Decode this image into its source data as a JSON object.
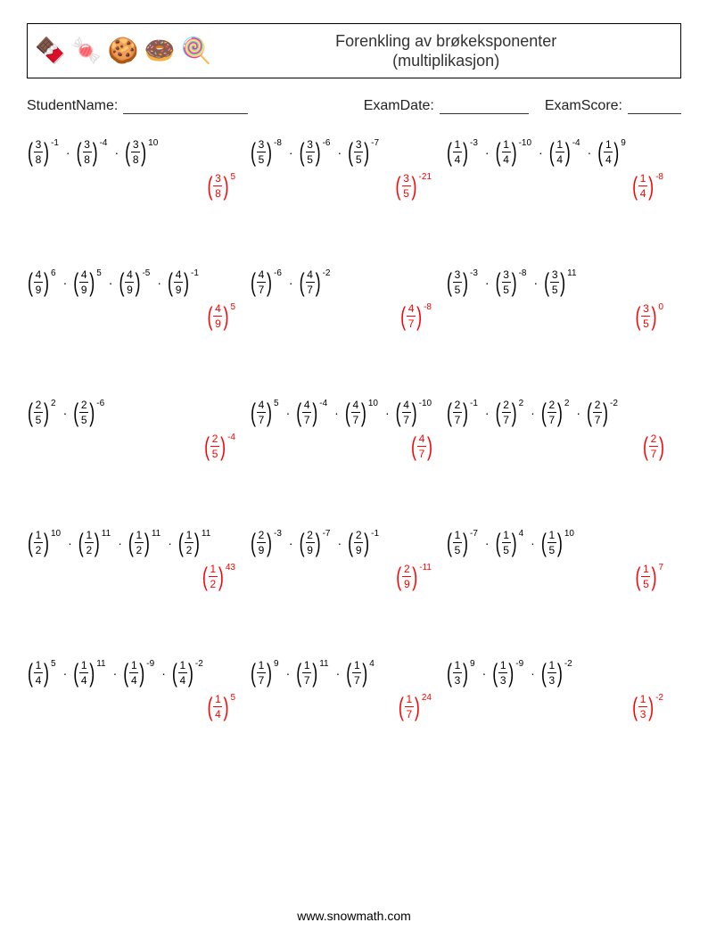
{
  "header": {
    "icons": [
      "🍫",
      "🍬",
      "🍪",
      "🍩",
      "🍭"
    ],
    "title_line1": "Forenkling av brøkeksponenter",
    "title_line2": "(multiplikasjon)"
  },
  "meta": {
    "student_label": "StudentName:",
    "date_label": "ExamDate:",
    "score_label": "ExamScore:"
  },
  "footer": "www.snowmath.com",
  "colors": {
    "text": "#000000",
    "answer": "#ff0000",
    "border": "#000000",
    "background": "#ffffff"
  },
  "problems": [
    [
      {
        "terms": [
          {
            "n": "3",
            "d": "8",
            "e": "-1"
          },
          {
            "n": "3",
            "d": "8",
            "e": "-4"
          },
          {
            "n": "3",
            "d": "8",
            "e": "10"
          }
        ],
        "ans": {
          "n": "3",
          "d": "8",
          "e": "5"
        }
      },
      {
        "terms": [
          {
            "n": "3",
            "d": "5",
            "e": "-8"
          },
          {
            "n": "3",
            "d": "5",
            "e": "-6"
          },
          {
            "n": "3",
            "d": "5",
            "e": "-7"
          }
        ],
        "ans": {
          "n": "3",
          "d": "5",
          "e": "-21"
        }
      },
      {
        "terms": [
          {
            "n": "1",
            "d": "4",
            "e": "-3"
          },
          {
            "n": "1",
            "d": "4",
            "e": "-10"
          },
          {
            "n": "1",
            "d": "4",
            "e": "-4"
          },
          {
            "n": "1",
            "d": "4",
            "e": "9"
          }
        ],
        "ans": {
          "n": "1",
          "d": "4",
          "e": "-8"
        }
      }
    ],
    [
      {
        "terms": [
          {
            "n": "4",
            "d": "9",
            "e": "6"
          },
          {
            "n": "4",
            "d": "9",
            "e": "5"
          },
          {
            "n": "4",
            "d": "9",
            "e": "-5"
          },
          {
            "n": "4",
            "d": "9",
            "e": "-1"
          }
        ],
        "ans": {
          "n": "4",
          "d": "9",
          "e": "5"
        }
      },
      {
        "terms": [
          {
            "n": "4",
            "d": "7",
            "e": "-6"
          },
          {
            "n": "4",
            "d": "7",
            "e": "-2"
          }
        ],
        "ans": {
          "n": "4",
          "d": "7",
          "e": "-8"
        }
      },
      {
        "terms": [
          {
            "n": "3",
            "d": "5",
            "e": "-3"
          },
          {
            "n": "3",
            "d": "5",
            "e": "-8"
          },
          {
            "n": "3",
            "d": "5",
            "e": "11"
          }
        ],
        "ans": {
          "n": "3",
          "d": "5",
          "e": "0"
        }
      }
    ],
    [
      {
        "terms": [
          {
            "n": "2",
            "d": "5",
            "e": "2"
          },
          {
            "n": "2",
            "d": "5",
            "e": "-6"
          }
        ],
        "ans": {
          "n": "2",
          "d": "5",
          "e": "-4"
        }
      },
      {
        "terms": [
          {
            "n": "4",
            "d": "7",
            "e": "5"
          },
          {
            "n": "4",
            "d": "7",
            "e": "-4"
          },
          {
            "n": "4",
            "d": "7",
            "e": "10"
          },
          {
            "n": "4",
            "d": "7",
            "e": "-10"
          }
        ],
        "ans": {
          "n": "4",
          "d": "7",
          "e": ""
        }
      },
      {
        "terms": [
          {
            "n": "2",
            "d": "7",
            "e": "-1"
          },
          {
            "n": "2",
            "d": "7",
            "e": "2"
          },
          {
            "n": "2",
            "d": "7",
            "e": "2"
          },
          {
            "n": "2",
            "d": "7",
            "e": "-2"
          }
        ],
        "ans": {
          "n": "2",
          "d": "7",
          "e": ""
        }
      }
    ],
    [
      {
        "terms": [
          {
            "n": "1",
            "d": "2",
            "e": "10"
          },
          {
            "n": "1",
            "d": "2",
            "e": "11"
          },
          {
            "n": "1",
            "d": "2",
            "e": "11"
          },
          {
            "n": "1",
            "d": "2",
            "e": "11"
          }
        ],
        "ans": {
          "n": "1",
          "d": "2",
          "e": "43"
        }
      },
      {
        "terms": [
          {
            "n": "2",
            "d": "9",
            "e": "-3"
          },
          {
            "n": "2",
            "d": "9",
            "e": "-7"
          },
          {
            "n": "2",
            "d": "9",
            "e": "-1"
          }
        ],
        "ans": {
          "n": "2",
          "d": "9",
          "e": "-11"
        }
      },
      {
        "terms": [
          {
            "n": "1",
            "d": "5",
            "e": "-7"
          },
          {
            "n": "1",
            "d": "5",
            "e": "4"
          },
          {
            "n": "1",
            "d": "5",
            "e": "10"
          }
        ],
        "ans": {
          "n": "1",
          "d": "5",
          "e": "7"
        }
      }
    ],
    [
      {
        "terms": [
          {
            "n": "1",
            "d": "4",
            "e": "5"
          },
          {
            "n": "1",
            "d": "4",
            "e": "11"
          },
          {
            "n": "1",
            "d": "4",
            "e": "-9"
          },
          {
            "n": "1",
            "d": "4",
            "e": "-2"
          }
        ],
        "ans": {
          "n": "1",
          "d": "4",
          "e": "5"
        }
      },
      {
        "terms": [
          {
            "n": "1",
            "d": "7",
            "e": "9"
          },
          {
            "n": "1",
            "d": "7",
            "e": "11"
          },
          {
            "n": "1",
            "d": "7",
            "e": "4"
          }
        ],
        "ans": {
          "n": "1",
          "d": "7",
          "e": "24"
        }
      },
      {
        "terms": [
          {
            "n": "1",
            "d": "3",
            "e": "9"
          },
          {
            "n": "1",
            "d": "3",
            "e": "-9"
          },
          {
            "n": "1",
            "d": "3",
            "e": "-2"
          }
        ],
        "ans": {
          "n": "1",
          "d": "3",
          "e": "-2"
        }
      }
    ]
  ]
}
